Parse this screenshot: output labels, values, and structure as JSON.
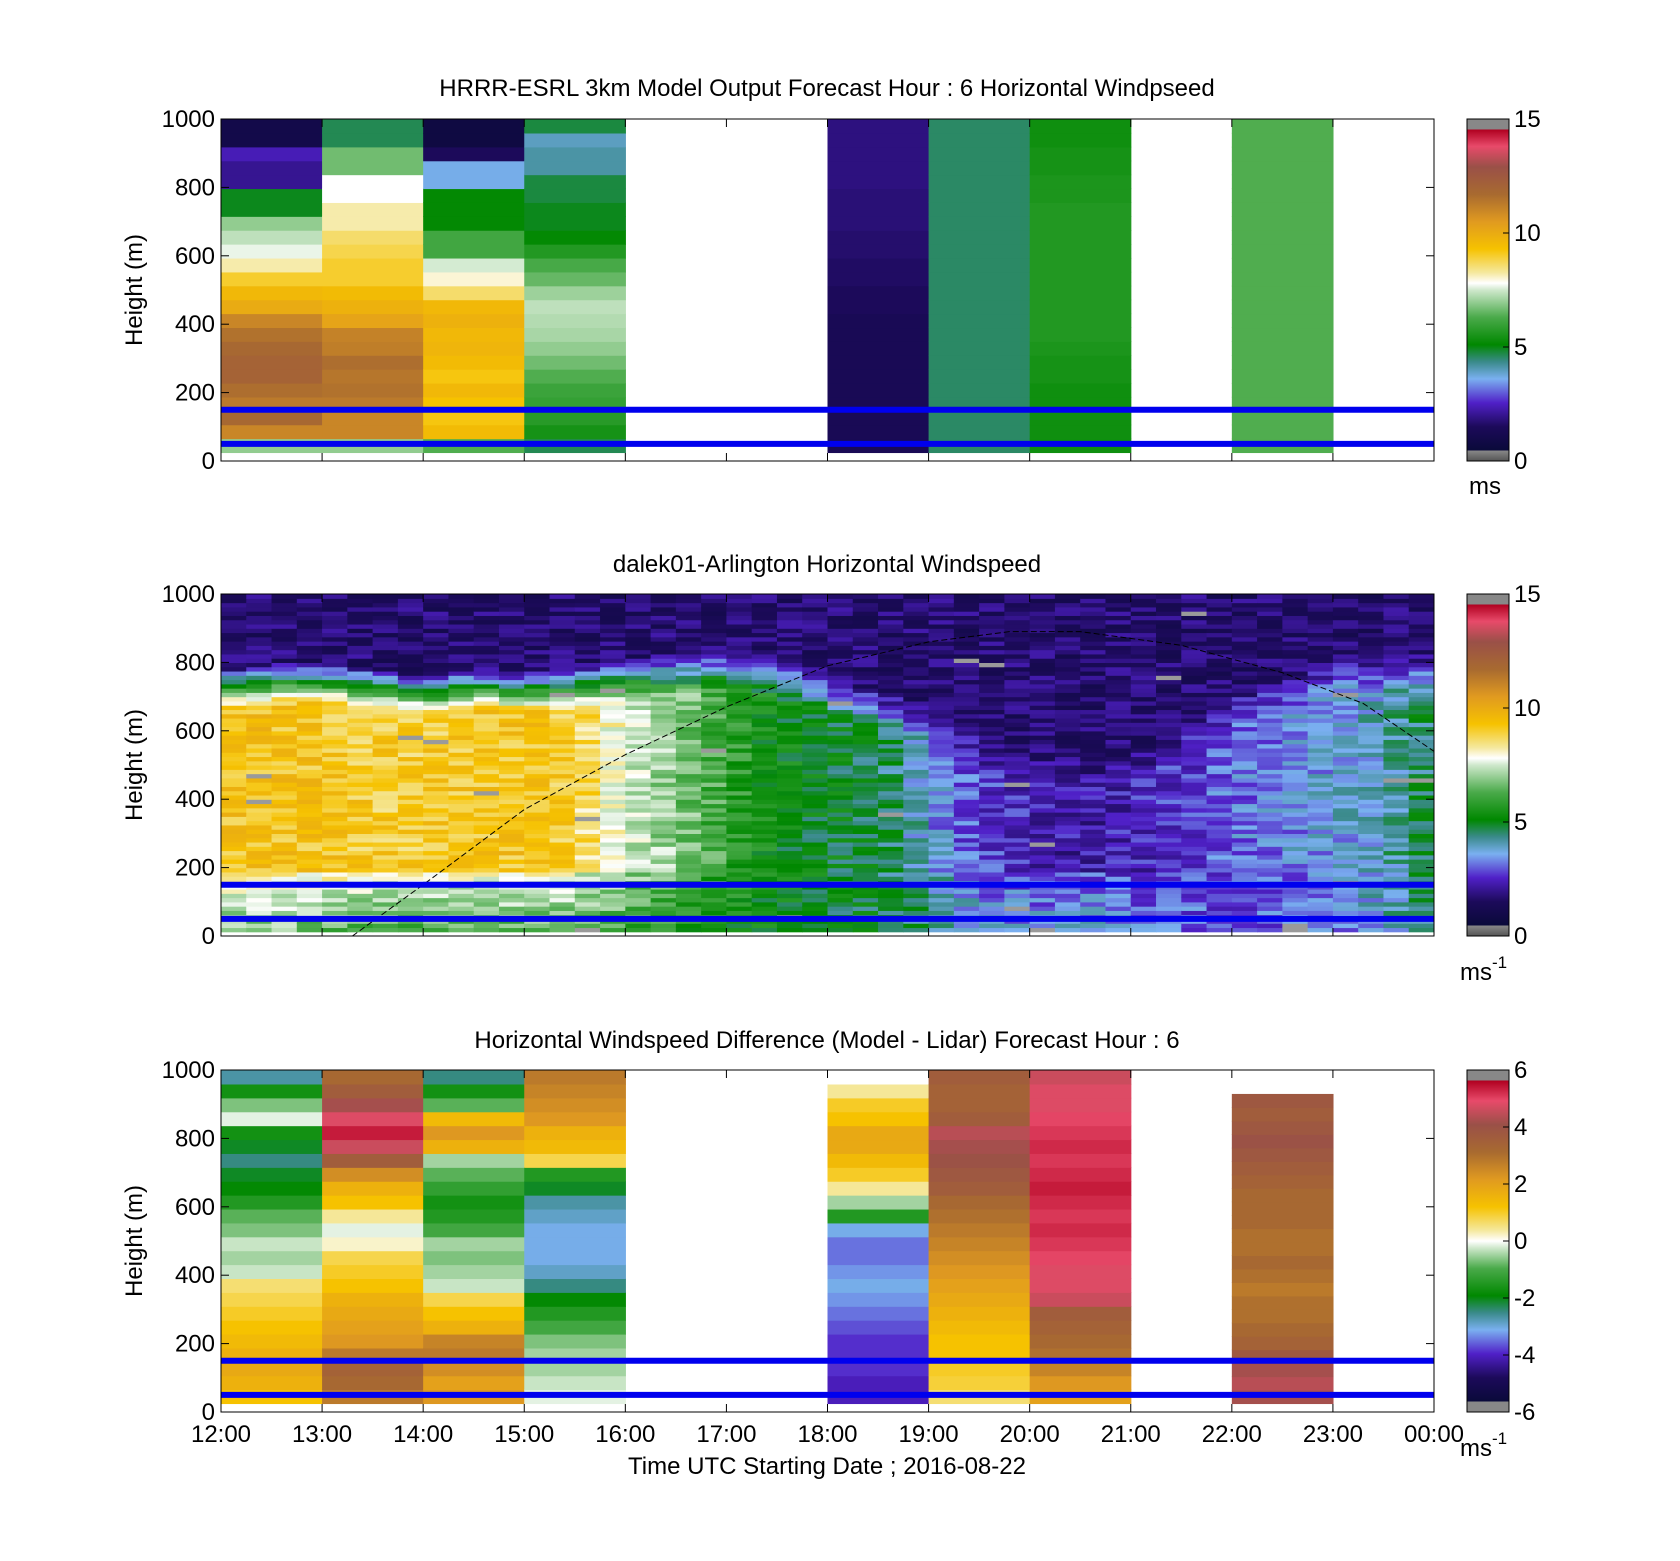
{
  "chart_data": [
    {
      "type": "heatmap",
      "title": "HRRR-ESRL 3km Model Output   Forecast Hour : 6 Horizontal Windpseed",
      "ylabel": "Height (m)",
      "ylim": [
        0,
        1000
      ],
      "yticks": [
        "0",
        "200",
        "400",
        "600",
        "800",
        "1000"
      ],
      "x_hours": [
        12,
        24
      ],
      "colorbar": {
        "min": 0,
        "max": 15,
        "ticks": [
          "0",
          "5",
          "10",
          "15"
        ],
        "unit": "ms"
      },
      "reference_heights_m": [
        150,
        50
      ],
      "reference_line_color": "#0000ee",
      "columns": [
        {
          "start": "12:00",
          "values": [
            6.8,
            11,
            11.8,
            11.3,
            11.6,
            12,
            12,
            11.8,
            11.5,
            11,
            10,
            9.6,
            9,
            8.2,
            7.6,
            7.2,
            6.8,
            4.8,
            4.8,
            1.8,
            1.8,
            2.2,
            0.6,
            0.6
          ]
        },
        {
          "start": "13:00",
          "values": [
            6.8,
            11,
            11,
            11.3,
            11.5,
            11.4,
            11.6,
            11.2,
            11.1,
            10.2,
            9.8,
            9.5,
            9,
            9,
            8.8,
            8.6,
            8.2,
            8.2,
            7.8,
            7.8,
            6.5,
            6.5,
            4.5,
            4.5
          ]
        },
        {
          "start": "14:00",
          "values": [
            6.2,
            9.5,
            9.2,
            9.3,
            9.6,
            9.2,
            9.5,
            9.7,
            9.6,
            9.8,
            9.6,
            8.6,
            8,
            7.4,
            6,
            6,
            5,
            5,
            5,
            3.5,
            3.5,
            1.2,
            0.3,
            0.3
          ]
        },
        {
          "start": "15:00",
          "values": [
            4.5,
            5.3,
            5.6,
            5.8,
            5.9,
            6.2,
            6.5,
            6.8,
            7,
            7.1,
            7.2,
            6.9,
            6.4,
            6.1,
            5.5,
            5,
            4.8,
            4.8,
            4.6,
            4.6,
            4,
            4,
            3.8,
            4.6
          ]
        },
        {
          "start": "16:00",
          "values": []
        },
        {
          "start": "17:00",
          "values": []
        },
        {
          "start": "18:00",
          "values": [
            1,
            1,
            1,
            1,
            1,
            1,
            1,
            1,
            1,
            1,
            1.2,
            1.2,
            1.3,
            1.3,
            1.4,
            1.4,
            1.5,
            1.5,
            1.5,
            1.6,
            1.6,
            1.6,
            1.6,
            1.6
          ]
        },
        {
          "start": "19:00",
          "values": [
            4.4,
            4.4,
            4.4,
            4.4,
            4.4,
            4.4,
            4.4,
            4.4,
            4.4,
            4.4,
            4.4,
            4.4,
            4.4,
            4.4,
            4.4,
            4.4,
            4.4,
            4.4,
            4.4,
            4.4,
            4.4,
            4.4,
            4.4,
            4.4
          ]
        },
        {
          "start": "20:00",
          "values": [
            5.2,
            5.2,
            5.2,
            5.2,
            5.2,
            5.3,
            5.3,
            5.4,
            5.5,
            5.5,
            5.5,
            5.5,
            5.5,
            5.5,
            5.5,
            5.5,
            5.5,
            5.5,
            5.4,
            5.4,
            5.3,
            5.3,
            5.2,
            5.2
          ]
        },
        {
          "start": "21:00",
          "values": []
        },
        {
          "start": "22:00",
          "values": [
            6.2,
            6.2,
            6.2,
            6.2,
            6.2,
            6.2,
            6.2,
            6.2,
            6.2,
            6.2,
            6.2,
            6.2,
            6.2,
            6.2,
            6.2,
            6.2,
            6.2,
            6.2,
            6.2,
            6.2,
            6.2,
            6.2,
            6.2,
            6.2
          ]
        },
        {
          "start": "23:00",
          "values": []
        }
      ],
      "column_top_m": 1000,
      "column_bottom_m": 25
    },
    {
      "type": "heatmap",
      "title": "dalek01-Arlington  Horizontal Windspeed",
      "ylabel": "Height (m)",
      "ylim": [
        0,
        1000
      ],
      "yticks": [
        "0",
        "200",
        "400",
        "600",
        "800",
        "1000"
      ],
      "x_hours": [
        12,
        24
      ],
      "colorbar": {
        "min": 0,
        "max": 15,
        "ticks": [
          "0",
          "5",
          "10",
          "15"
        ],
        "unit": "ms",
        "unit_sup": "-1"
      },
      "reference_heights_m": [
        150,
        50
      ],
      "reference_line_color": "#0000ee",
      "column_width_hours": 0.25,
      "speed_profiles": [
        {
          "time": 12.0,
          "surface": 6.5,
          "layer": 9.3,
          "top": 660
        },
        {
          "time": 12.5,
          "surface": 6.5,
          "layer": 9.3,
          "top": 670
        },
        {
          "time": 13.0,
          "surface": 6.3,
          "layer": 9.2,
          "top": 680
        },
        {
          "time": 13.5,
          "surface": 6.0,
          "layer": 9.0,
          "top": 660
        },
        {
          "time": 14.0,
          "surface": 6.0,
          "layer": 9.0,
          "top": 640
        },
        {
          "time": 14.5,
          "surface": 6.0,
          "layer": 9.2,
          "top": 660
        },
        {
          "time": 15.0,
          "surface": 6.0,
          "layer": 9.2,
          "top": 650
        },
        {
          "time": 15.5,
          "surface": 6.0,
          "layer": 9.0,
          "top": 660
        },
        {
          "time": 16.0,
          "surface": 5.8,
          "layer": 7.5,
          "top": 690
        },
        {
          "time": 16.5,
          "surface": 5.6,
          "layer": 6.8,
          "top": 700
        },
        {
          "time": 17.0,
          "surface": 5.2,
          "layer": 5.8,
          "top": 720
        },
        {
          "time": 17.5,
          "surface": 5.0,
          "layer": 5.0,
          "top": 700
        },
        {
          "time": 18.0,
          "surface": 4.8,
          "layer": 4.8,
          "top": 650
        },
        {
          "time": 18.5,
          "surface": 4.6,
          "layer": 4.6,
          "top": 600
        },
        {
          "time": 19.0,
          "surface": 4.4,
          "layer": 3.5,
          "top": 560
        },
        {
          "time": 19.5,
          "surface": 3.6,
          "layer": 2.6,
          "top": 480
        },
        {
          "time": 20.0,
          "surface": 3.4,
          "layer": 2.2,
          "top": 430
        },
        {
          "time": 20.5,
          "surface": 3.8,
          "layer": 2.0,
          "top": 420
        },
        {
          "time": 21.0,
          "surface": 3.2,
          "layer": 2.2,
          "top": 430
        },
        {
          "time": 21.5,
          "surface": 3.0,
          "layer": 2.5,
          "top": 520
        },
        {
          "time": 22.0,
          "surface": 2.6,
          "layer": 3.0,
          "top": 600
        },
        {
          "time": 22.5,
          "surface": 2.8,
          "layer": 3.2,
          "top": 650
        },
        {
          "time": 23.0,
          "surface": 3.0,
          "layer": 3.4,
          "top": 700
        },
        {
          "time": 23.5,
          "surface": 3.6,
          "layer": 3.8,
          "top": 700
        },
        {
          "time": 24.0,
          "surface": 4.5,
          "layer": 4.6,
          "top": 700
        }
      ],
      "mixing_height_curve": [
        {
          "time": 13.3,
          "height": 0
        },
        {
          "time": 14.0,
          "height": 150
        },
        {
          "time": 15.0,
          "height": 370
        },
        {
          "time": 16.0,
          "height": 530
        },
        {
          "time": 17.0,
          "height": 670
        },
        {
          "time": 18.0,
          "height": 790
        },
        {
          "time": 19.0,
          "height": 860
        },
        {
          "time": 19.8,
          "height": 890
        },
        {
          "time": 20.5,
          "height": 890
        },
        {
          "time": 21.5,
          "height": 850
        },
        {
          "time": 22.5,
          "height": 770
        },
        {
          "time": 23.3,
          "height": 680
        },
        {
          "time": 24.0,
          "height": 540
        }
      ]
    },
    {
      "type": "heatmap",
      "title": "Horizontal Windspeed Difference (Model - Lidar) Forecast Hour : 6",
      "xlabel": "Time UTC  Starting Date ; 2016-08-22",
      "ylabel": "Height (m)",
      "ylim": [
        0,
        1000
      ],
      "yticks": [
        "0",
        "200",
        "400",
        "600",
        "800",
        "1000"
      ],
      "xticks": [
        "12:00",
        "13:00",
        "14:00",
        "15:00",
        "16:00",
        "17:00",
        "18:00",
        "19:00",
        "20:00",
        "21:00",
        "22:00",
        "23:00",
        "00:00"
      ],
      "x_hours": [
        12,
        24
      ],
      "colorbar": {
        "min": -6,
        "max": 6,
        "ticks": [
          "-6",
          "-4",
          "-2",
          "0",
          "2",
          "4",
          "6"
        ],
        "unit": "ms",
        "unit_sup": "-1"
      },
      "reference_heights_m": [
        150,
        50
      ],
      "reference_line_color": "#0000ee",
      "columns": [
        {
          "start": "12:00",
          "values": [
            1.2,
            1.6,
            1.8,
            1.6,
            1.4,
            1.2,
            1.0,
            0.8,
            0.6,
            -0.4,
            -0.6,
            -0.4,
            -0.8,
            -1,
            -1.6,
            -2.0,
            -2.2,
            -2.6,
            -2.2,
            -1.8,
            -0.2,
            -0.8,
            -1.8,
            -2.8
          ]
        },
        {
          "start": "13:00",
          "values": [
            2.8,
            3.2,
            3.4,
            2.8,
            2.2,
            2.0,
            1.8,
            1.6,
            1.2,
            1.0,
            0.8,
            0.2,
            -0.2,
            0.4,
            1.2,
            1.6,
            2.4,
            3.6,
            4.6,
            5.6,
            4.8,
            4.2,
            3.6,
            3.2
          ]
        },
        {
          "start": "14:00",
          "values": [
            2.2,
            2.0,
            2.4,
            2.8,
            2.6,
            1.6,
            1.2,
            0.8,
            -0.4,
            -0.6,
            -0.8,
            -0.6,
            -1.2,
            -1.6,
            -1.8,
            -1.4,
            -1.0,
            -0.6,
            1.6,
            2.2,
            1.4,
            -1.0,
            -1.8,
            -2.6
          ]
        },
        {
          "start": "15:00",
          "values": [
            -0.2,
            -0.4,
            -0.6,
            -0.6,
            -0.8,
            -1.2,
            -1.6,
            -2.0,
            -2.6,
            -3.0,
            -3.2,
            -3.2,
            -3.2,
            -3.0,
            -2.8,
            -2.2,
            -1.6,
            0.8,
            1.4,
            1.6,
            2.2,
            2.4,
            2.6,
            2.8
          ]
        },
        {
          "start": "16:00",
          "values": []
        },
        {
          "start": "17:00",
          "values": []
        },
        {
          "start": "18:00",
          "values": [
            -4.2,
            -4.2,
            -4.0,
            -4.0,
            -4.0,
            -3.8,
            -3.6,
            -3.4,
            -3.2,
            -3.4,
            -3.6,
            -3.6,
            -3.2,
            -1.6,
            -0.6,
            0.4,
            1.0,
            1.4,
            1.8,
            1.8,
            1.2,
            1.0,
            0.4,
            0.0
          ]
        },
        {
          "start": "19:00",
          "values": [
            0.6,
            0.9,
            1.0,
            1.2,
            1.2,
            1.4,
            1.6,
            1.8,
            2.0,
            2.2,
            2.4,
            2.6,
            2.8,
            3.0,
            3.2,
            3.6,
            3.8,
            4.0,
            4.2,
            4.4,
            3.6,
            3.4,
            3.4,
            3.6
          ]
        },
        {
          "start": "20:00",
          "values": [
            2.0,
            2.2,
            2.6,
            3.0,
            3.2,
            3.4,
            3.6,
            4.6,
            4.8,
            4.8,
            5.0,
            5.2,
            5.4,
            5.2,
            5.4,
            5.6,
            5.4,
            5.2,
            5.4,
            5.2,
            5.0,
            4.8,
            4.8,
            4.6
          ]
        },
        {
          "start": "21:00",
          "values": []
        },
        {
          "start": "22:00",
          "values": [
            4.2,
            4.4,
            4.2,
            3.8,
            3.4,
            3.2,
            3.0,
            3.0,
            2.8,
            3.0,
            3.2,
            3.0,
            3.0,
            3.2,
            3.2,
            3.2,
            3.4,
            3.6,
            3.8,
            4.0,
            3.8,
            3.6,
            3.8
          ]
        },
        {
          "start": "23:00",
          "values": []
        }
      ],
      "column_top_m": 1000,
      "column_bottom_m": 25,
      "top_22h_m": 930
    }
  ]
}
